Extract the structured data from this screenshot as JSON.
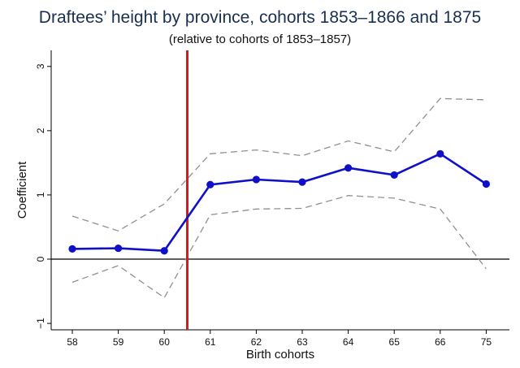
{
  "title": "Draftees’ height by province, cohorts 1853–1866 and 1875",
  "subtitle": "(relative to cohorts of 1853–1857)",
  "chart_data": {
    "type": "line",
    "title": "Draftees’ height by province, cohorts 1853–1866 and 1875",
    "subtitle": "(relative to cohorts of 1853–1857)",
    "xlabel": "Birth cohorts",
    "ylabel": "Coefficient",
    "categories": [
      "58",
      "59",
      "60",
      "61",
      "62",
      "63",
      "64",
      "65",
      "66",
      "75"
    ],
    "series": [
      {
        "role": "estimate",
        "values": [
          0.16,
          0.17,
          0.13,
          1.16,
          1.24,
          1.2,
          1.42,
          1.31,
          1.64,
          1.17
        ]
      },
      {
        "role": "upper-ci",
        "values": [
          0.67,
          0.44,
          0.86,
          1.64,
          1.7,
          1.61,
          1.84,
          1.67,
          2.5,
          2.48
        ]
      },
      {
        "role": "lower-ci",
        "values": [
          -0.36,
          -0.1,
          -0.6,
          0.69,
          0.78,
          0.79,
          0.99,
          0.95,
          0.78,
          -0.15
        ]
      }
    ],
    "yticks": [
      -1,
      0,
      1,
      2,
      3
    ],
    "ylim": [
      -1.1,
      3.25
    ],
    "reference_line_y": 0,
    "vertical_line_between": [
      "60",
      "61"
    ],
    "grid": false,
    "colors": {
      "estimate": "#1010c8",
      "ci": "#909090",
      "vline": "#c82020",
      "zero": "#000000",
      "title": "#1a2f4f"
    }
  }
}
